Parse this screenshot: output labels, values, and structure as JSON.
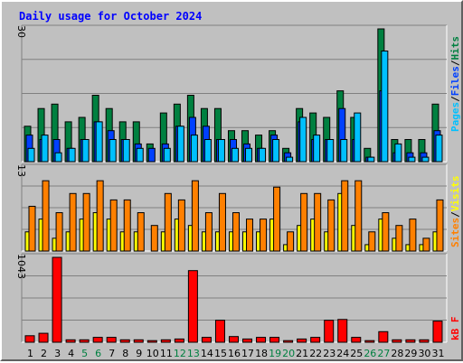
{
  "title": "Daily usage for October 2024",
  "colors": {
    "hits": "#008040",
    "files": "#0040ff",
    "pages": "#00c0ff",
    "sites": "#ff8000",
    "visits": "#ffff00",
    "kbytes": "#ff0000",
    "weekend_day": "#008040",
    "weekday": "#000000"
  },
  "legend": {
    "pages": "Pages",
    "files": "Files",
    "hits": "Hits",
    "sites": "Sites",
    "visits": "Visits",
    "kbytes": "kB F",
    "sep": "/"
  },
  "chart_data": {
    "type": "bar",
    "title": "Daily usage for October 2024",
    "categories": [
      "1",
      "2",
      "3",
      "4",
      "5",
      "6",
      "7",
      "8",
      "9",
      "10",
      "11",
      "12",
      "13",
      "14",
      "15",
      "16",
      "17",
      "18",
      "19",
      "20",
      "21",
      "22",
      "23",
      "24",
      "25",
      "26",
      "27",
      "28",
      "29",
      "30",
      "31"
    ],
    "weekend_days": [
      "5",
      "6",
      "12",
      "13",
      "19",
      "20",
      "26",
      "27"
    ],
    "panels": [
      {
        "name": "hits-files-pages",
        "ymax_label": "30",
        "ylim": [
          0,
          30
        ],
        "series": [
          {
            "name": "Hits",
            "key": "hits",
            "values": [
              8,
              12,
              13,
              9,
              10,
              15,
              12,
              9,
              9,
              4,
              11,
              13,
              15,
              12,
              12,
              7,
              7,
              6,
              7,
              3,
              12,
              11,
              10,
              16,
              10,
              3,
              30,
              5,
              5,
              5,
              13
            ]
          },
          {
            "name": "Files",
            "key": "files",
            "values": [
              6,
              5,
              5,
              3,
              5,
              9,
              7,
              5,
              4,
              3,
              4,
              8,
              10,
              8,
              5,
              5,
              4,
              3,
              6,
              2,
              9,
              5,
              5,
              12,
              5,
              1,
              16,
              2,
              2,
              2,
              7
            ]
          },
          {
            "name": "Pages",
            "key": "pages",
            "values": [
              3,
              6,
              2,
              3,
              5,
              9,
              5,
              5,
              3,
              0,
              3,
              8,
              6,
              5,
              5,
              3,
              3,
              3,
              5,
              1,
              10,
              6,
              5,
              5,
              11,
              1,
              25,
              4,
              1,
              1,
              6
            ]
          }
        ]
      },
      {
        "name": "visits-sites",
        "ymax_label": "13",
        "ylim": [
          0,
          13
        ],
        "series": [
          {
            "name": "Visits",
            "key": "visits",
            "values": [
              3,
              5,
              2,
              3,
              5,
              6,
              5,
              3,
              3,
              0,
              3,
              5,
              4,
              3,
              3,
              3,
              3,
              3,
              5,
              1,
              4,
              5,
              3,
              9,
              4,
              1,
              5,
              2,
              1,
              1,
              3
            ]
          },
          {
            "name": "Sites",
            "key": "sites",
            "values": [
              7,
              11,
              6,
              9,
              9,
              11,
              8,
              8,
              6,
              4,
              9,
              8,
              11,
              6,
              9,
              6,
              5,
              5,
              10,
              3,
              9,
              9,
              8,
              11,
              11,
              3,
              6,
              4,
              5,
              2,
              8
            ]
          }
        ]
      },
      {
        "name": "kbytes",
        "ymax_label": "1043",
        "ylim": [
          0,
          1043
        ],
        "series": [
          {
            "name": "KBytes",
            "key": "kbytes",
            "values": [
              80,
              110,
              1043,
              30,
              30,
              60,
              60,
              30,
              30,
              20,
              30,
              40,
              880,
              60,
              270,
              70,
              40,
              60,
              60,
              20,
              40,
              60,
              270,
              280,
              60,
              20,
              130,
              30,
              30,
              30,
              260
            ]
          }
        ]
      }
    ]
  }
}
